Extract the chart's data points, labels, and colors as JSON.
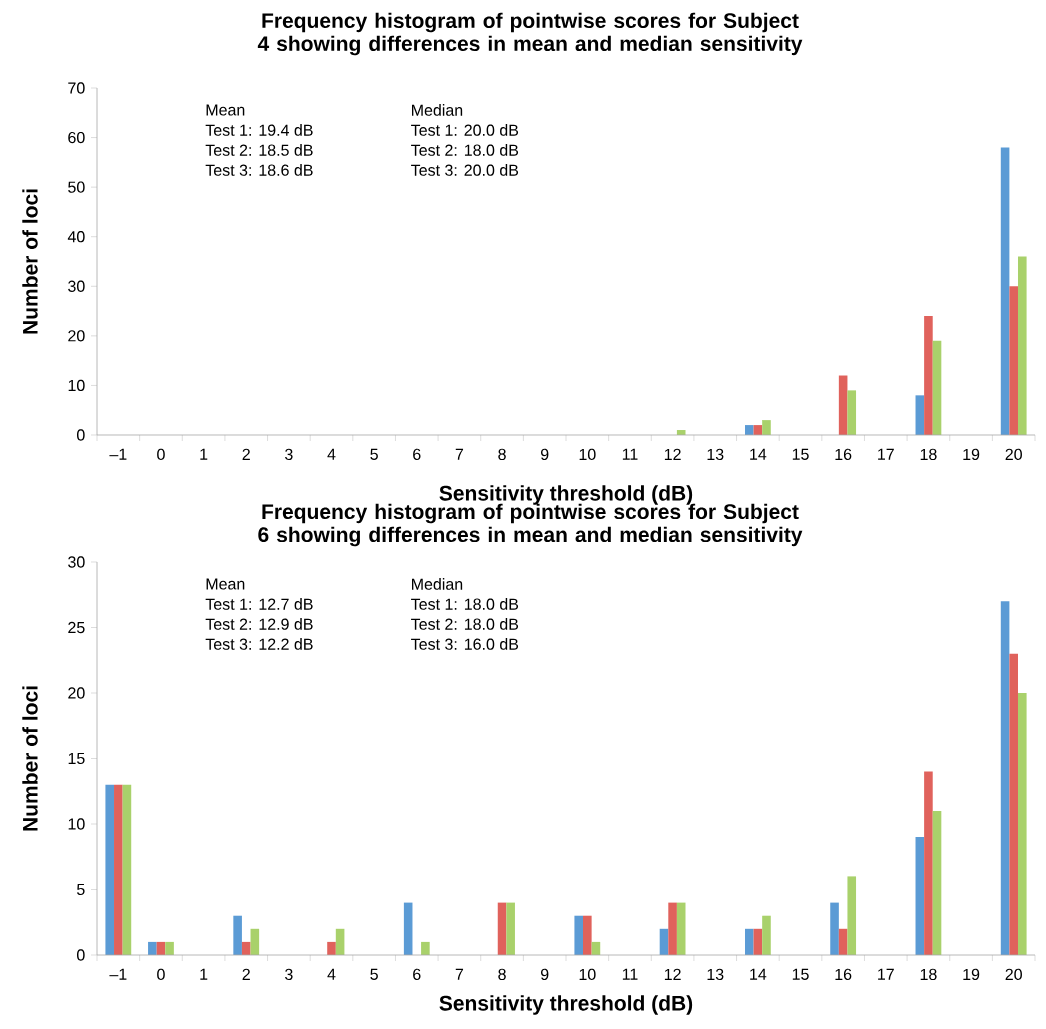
{
  "chart_data": [
    {
      "type": "bar",
      "title": "Frequency histogram of pointwise scores for Subject 4 showing differences in mean and median sensitivity",
      "xlabel": "Sensitivity threshold (dB)",
      "ylabel": "Number of loci",
      "categories": [
        "–1",
        "0",
        "1",
        "2",
        "3",
        "4",
        "5",
        "6",
        "7",
        "8",
        "9",
        "10",
        "11",
        "12",
        "13",
        "14",
        "15",
        "16",
        "17",
        "18",
        "19",
        "20"
      ],
      "series": [
        {
          "color": "#5b9bd5",
          "values": [
            0,
            0,
            0,
            0,
            0,
            0,
            0,
            0,
            0,
            0,
            0,
            0,
            0,
            0,
            0,
            2,
            0,
            0,
            0,
            8,
            0,
            58
          ]
        },
        {
          "color": "#e0625c",
          "values": [
            0,
            0,
            0,
            0,
            0,
            0,
            0,
            0,
            0,
            0,
            0,
            0,
            0,
            0,
            0,
            2,
            0,
            12,
            0,
            24,
            0,
            30
          ]
        },
        {
          "color": "#a9d16b",
          "values": [
            0,
            0,
            0,
            0,
            0,
            0,
            0,
            0,
            0,
            0,
            0,
            0,
            0,
            1,
            0,
            3,
            0,
            9,
            0,
            19,
            0,
            36
          ]
        }
      ],
      "ylim": [
        0,
        70
      ],
      "yticks": [
        0,
        10,
        20,
        30,
        40,
        50,
        60,
        70
      ],
      "annotations": [
        "Mean",
        "Test 1: 19.4 dB",
        "Test 2: 18.5 dB",
        "Test 3: 18.6 dB",
        "Median",
        "Test 1: 20.0 dB",
        "Test 2: 18.0 dB",
        "Test 3: 20.0 dB"
      ]
    },
    {
      "type": "bar",
      "title": "Frequency histogram of pointwise scores for Subject 6 showing differences in mean and median sensitivity",
      "xlabel": "Sensitivity threshold (dB)",
      "ylabel": "Number of loci",
      "categories": [
        "–1",
        "0",
        "1",
        "2",
        "3",
        "4",
        "5",
        "6",
        "7",
        "8",
        "9",
        "10",
        "11",
        "12",
        "13",
        "14",
        "15",
        "16",
        "17",
        "18",
        "19",
        "20"
      ],
      "series": [
        {
          "color": "#5b9bd5",
          "values": [
            13,
            1,
            0,
            3,
            0,
            0,
            0,
            4,
            0,
            0,
            0,
            3,
            0,
            2,
            0,
            2,
            0,
            4,
            0,
            9,
            0,
            27
          ]
        },
        {
          "color": "#e0625c",
          "values": [
            13,
            1,
            0,
            1,
            0,
            1,
            0,
            0,
            0,
            4,
            0,
            3,
            0,
            4,
            0,
            2,
            0,
            2,
            0,
            14,
            0,
            23
          ]
        },
        {
          "color": "#a9d16b",
          "values": [
            13,
            1,
            0,
            2,
            0,
            2,
            0,
            1,
            0,
            4,
            0,
            1,
            0,
            4,
            0,
            3,
            0,
            6,
            0,
            11,
            0,
            20
          ]
        }
      ],
      "ylim": [
        0,
        30
      ],
      "yticks": [
        0,
        5,
        10,
        15,
        20,
        25,
        30
      ],
      "annotations": [
        "Mean",
        "Test 1: 12.7 dB",
        "Test 2: 12.9 dB",
        "Test 3: 12.2 dB",
        "Median",
        "Test 1: 18.0 dB",
        "Test 2: 18.0 dB",
        "Test 3: 16.0 dB"
      ]
    }
  ]
}
